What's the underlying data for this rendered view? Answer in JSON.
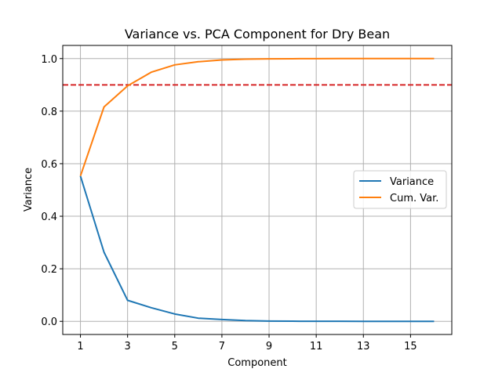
{
  "chart_data": {
    "type": "line",
    "title": "Variance vs. PCA Component for Dry Bean",
    "xlabel": "Component",
    "ylabel": "Variance",
    "x": [
      1,
      2,
      3,
      4,
      5,
      6,
      7,
      8,
      9,
      10,
      11,
      12,
      13,
      14,
      15,
      16
    ],
    "xlim": [
      0.25,
      16.75
    ],
    "ylim": [
      -0.05,
      1.05
    ],
    "xticks": [
      "1",
      "3",
      "5",
      "7",
      "9",
      "11",
      "13",
      "15"
    ],
    "yticks": [
      "0.0",
      "0.2",
      "0.4",
      "0.6",
      "0.8",
      "1.0"
    ],
    "grid": true,
    "legend_position": "center-right",
    "series": [
      {
        "name": "Variance",
        "color": "#1f77b4",
        "values": [
          0.553,
          0.263,
          0.08,
          0.052,
          0.028,
          0.012,
          0.007,
          0.003,
          0.001,
          0.0005,
          0.0003,
          0.0002,
          0.0001,
          0.0001,
          0.0001,
          0.0001
        ]
      },
      {
        "name": "Cum. Var.",
        "color": "#ff7f0e",
        "values": [
          0.553,
          0.816,
          0.896,
          0.948,
          0.976,
          0.988,
          0.995,
          0.998,
          0.999,
          0.9995,
          0.9998,
          0.9999,
          1.0,
          1.0,
          1.0,
          1.0
        ]
      }
    ],
    "reference_line": {
      "y": 0.9,
      "color": "#d62728",
      "style": "dashed"
    }
  }
}
